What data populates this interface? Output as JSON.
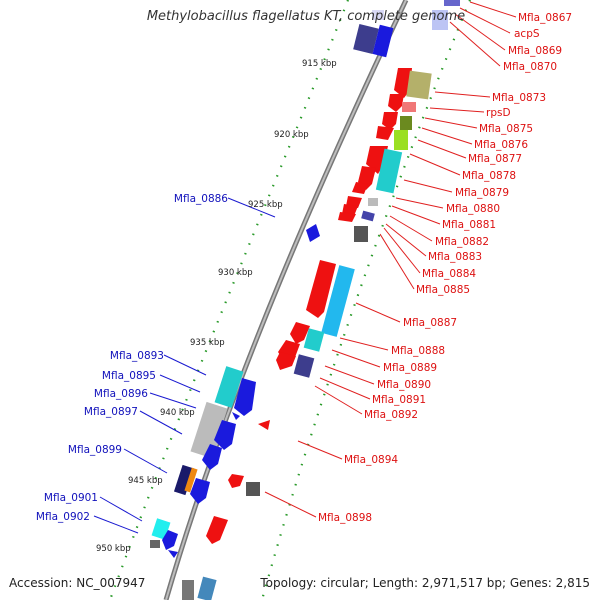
{
  "title": "Methylobacillus flagellatus KT, complete genome",
  "accession_label": "Accession: NC_007947",
  "topology_label": "Topology: circular; Length: 2,971,517 bp; Genes: 2,815",
  "colors": {
    "backbone": "#8c8c8c",
    "forward_label": "#dd1111",
    "reverse_label": "#1111bb",
    "tick": "#229922"
  },
  "scale_labels": [
    "915 kbp",
    "920 kbp",
    "925 kbp",
    "930 kbp",
    "935 kbp",
    "940 kbp",
    "945 kbp",
    "950 kbp"
  ],
  "forward_genes": [
    "Mfla_0867",
    "acpS",
    "Mfla_0869",
    "Mfla_0870",
    "Mfla_0873",
    "rpsD",
    "Mfla_0875",
    "Mfla_0876",
    "Mfla_0877",
    "Mfla_0878",
    "Mfla_0879",
    "Mfla_0880",
    "Mfla_0881",
    "Mfla_0882",
    "Mfla_0883",
    "Mfla_0884",
    "Mfla_0885",
    "Mfla_0887",
    "Mfla_0888",
    "Mfla_0889",
    "Mfla_0890",
    "Mfla_0891",
    "Mfla_0892",
    "Mfla_0894",
    "Mfla_0898"
  ],
  "reverse_genes": [
    "Mfla_0886",
    "Mfla_0893",
    "Mfla_0895",
    "Mfla_0896",
    "Mfla_0897",
    "Mfla_0899",
    "Mfla_0901",
    "Mfla_0902"
  ]
}
